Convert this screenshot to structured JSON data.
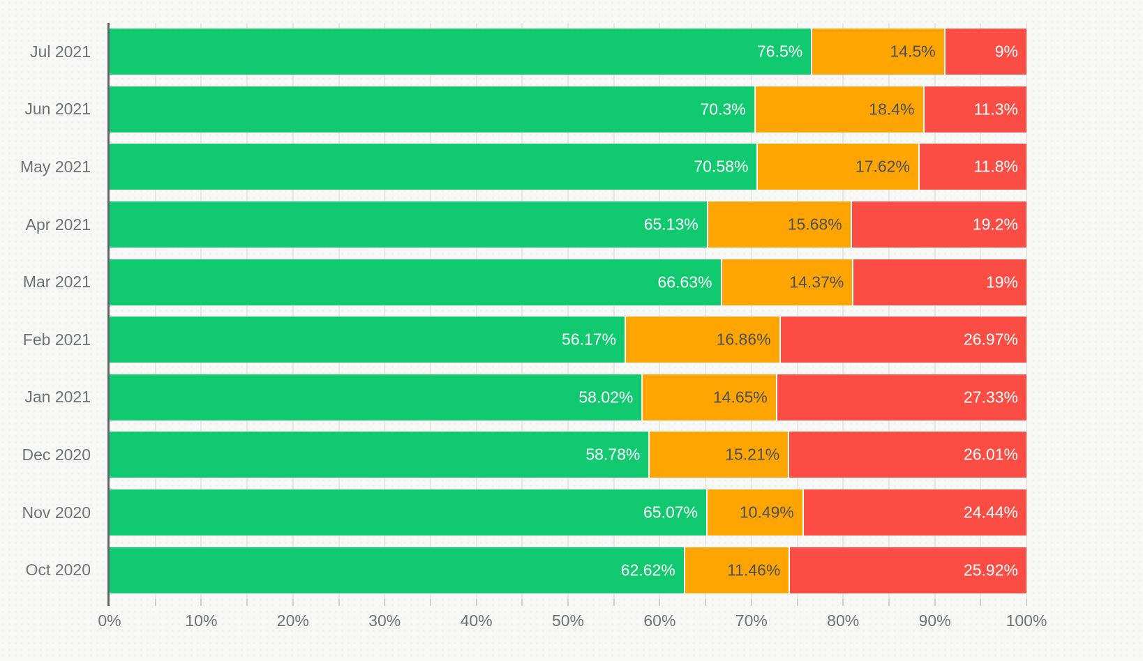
{
  "chart_data": {
    "type": "bar",
    "orientation": "horizontal",
    "stacked": true,
    "legend": "none",
    "grid": true,
    "categories": [
      "Jul 2021",
      "Jun 2021",
      "May 2021",
      "Apr 2021",
      "Mar 2021",
      "Feb 2021",
      "Jan 2021",
      "Dec 2020",
      "Nov 2020",
      "Oct 2020"
    ],
    "series": [
      {
        "name": "green",
        "color": "#11c96e",
        "label_color": "#ffffff",
        "values": [
          76.5,
          70.3,
          70.58,
          65.13,
          66.63,
          56.17,
          58.02,
          58.78,
          65.07,
          62.62
        ],
        "labels": [
          "76.5%",
          "70.3%",
          "70.58%",
          "65.13%",
          "66.63%",
          "56.17%",
          "58.02%",
          "58.78%",
          "65.07%",
          "62.62%"
        ]
      },
      {
        "name": "orange",
        "color": "#ffa502",
        "label_color": "#4c4f54",
        "values": [
          14.5,
          18.4,
          17.62,
          15.68,
          14.37,
          16.86,
          14.65,
          15.21,
          10.49,
          11.46
        ],
        "labels": [
          "14.5%",
          "18.4%",
          "17.62%",
          "15.68%",
          "14.37%",
          "16.86%",
          "14.65%",
          "15.21%",
          "10.49%",
          "11.46%"
        ]
      },
      {
        "name": "red",
        "color": "#fb4d43",
        "label_color": "#ffffff",
        "values": [
          9,
          11.3,
          11.8,
          19.2,
          19,
          26.97,
          27.33,
          26.01,
          24.44,
          25.92
        ],
        "labels": [
          "9%",
          "11.3%",
          "11.8%",
          "19.2%",
          "19%",
          "26.97%",
          "27.33%",
          "26.01%",
          "24.44%",
          "25.92%"
        ]
      }
    ],
    "x_axis": {
      "min": 0,
      "max": 100,
      "major_tick_step": 10,
      "minor_tick_step": 5,
      "tick_labels": [
        "0%",
        "10%",
        "20%",
        "30%",
        "40%",
        "50%",
        "60%",
        "70%",
        "80%",
        "90%",
        "100%"
      ]
    }
  },
  "style": {
    "background": "#f8f8f6",
    "grid_color": "#e7e7e4",
    "axis_line_color": "#63666b",
    "tick_color": "#d0d0ce",
    "axis_label_color": "#6f7276",
    "segment_separator_color": "#ffffff"
  }
}
